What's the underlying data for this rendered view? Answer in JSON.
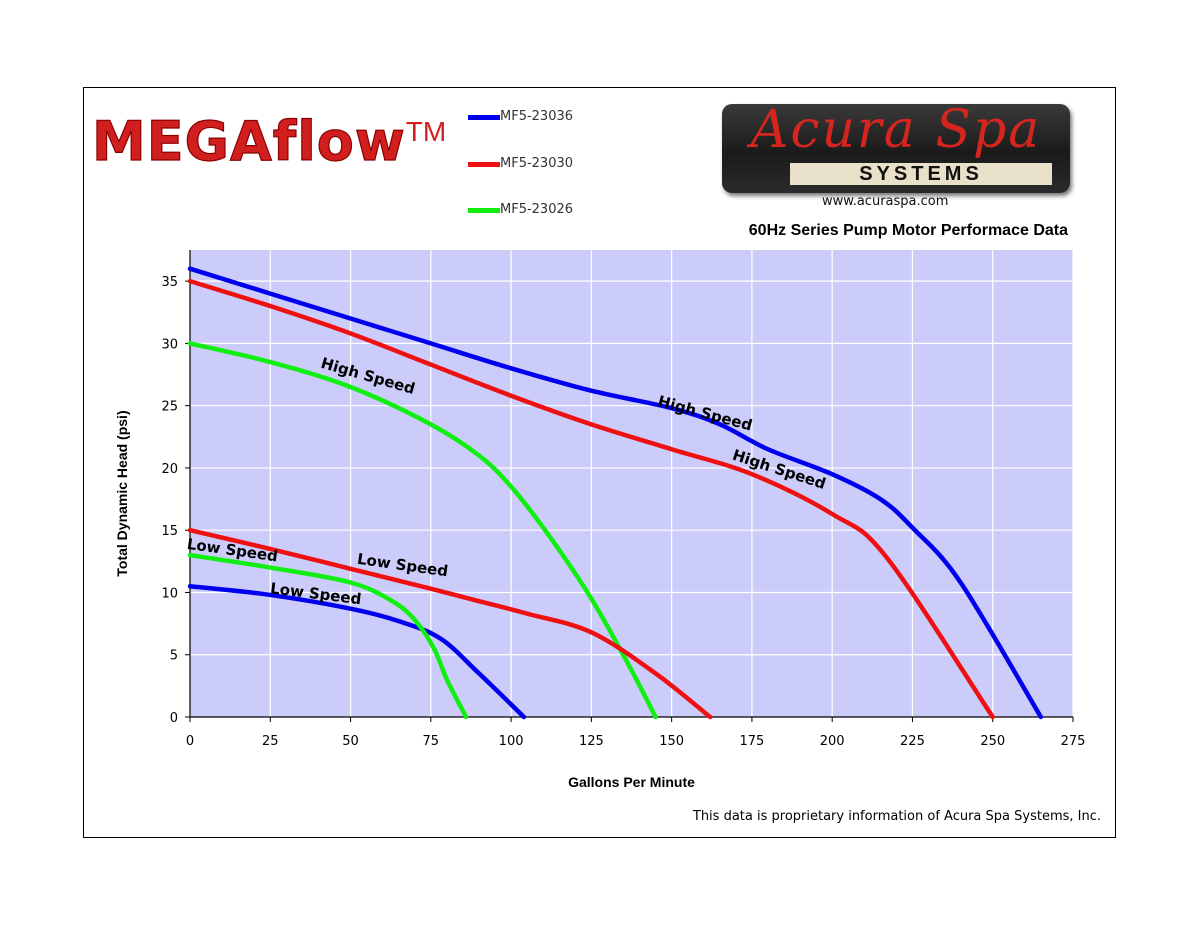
{
  "brand": {
    "logo_text": "MEGAflow",
    "logo_mark": "TM"
  },
  "company": {
    "logo_name": "Acura Spa",
    "logo_sub": "SYSTEMS",
    "website": "www.acuraspa.com"
  },
  "colors": {
    "MF5-23036": "#0000ee",
    "MF5-23030": "#ee1111",
    "MF5-23026": "#11ee11",
    "plot_bg": "#ccccfa"
  },
  "footnote": "This data is proprietary information of Acura Spa Systems, Inc.",
  "chart_data": {
    "type": "line",
    "title": "60Hz Series Pump Motor Performace Data",
    "xlabel": "Gallons Per Minute",
    "ylabel": "Total Dynamic Head (psi)",
    "xlim": [
      0,
      275
    ],
    "ylim": [
      0,
      37.5
    ],
    "xticks": [
      0,
      25,
      50,
      75,
      100,
      125,
      150,
      175,
      200,
      225,
      250,
      275
    ],
    "yticks": [
      0,
      5,
      10,
      15,
      20,
      25,
      30,
      35
    ],
    "grid": true,
    "legend_position": "top",
    "legend": [
      "MF5-23036",
      "MF5-23030",
      "MF5-23026"
    ],
    "series": [
      {
        "name": "MF5-23036",
        "color": "#0000ee",
        "label": "High Speed",
        "x": [
          0,
          25,
          50,
          75,
          100,
          125,
          150,
          165,
          180,
          200,
          215,
          225,
          240,
          265
        ],
        "y": [
          36,
          34,
          32,
          30,
          28,
          26.2,
          24.8,
          23.5,
          21.5,
          19.5,
          17.5,
          15.2,
          10.8,
          0
        ]
      },
      {
        "name": "MF5-23030",
        "color": "#ee1111",
        "label": "High Speed",
        "x": [
          0,
          25,
          50,
          75,
          100,
          125,
          150,
          175,
          200,
          217,
          250
        ],
        "y": [
          35,
          33,
          30.8,
          28.3,
          25.8,
          23.5,
          21.5,
          19.5,
          16.3,
          12.8,
          0
        ]
      },
      {
        "name": "MF5-23026",
        "color": "#11ee11",
        "label": "High Speed",
        "x": [
          0,
          25,
          50,
          75,
          90,
          100,
          112,
          125,
          137,
          145
        ],
        "y": [
          30,
          28.5,
          26.5,
          23.5,
          21,
          18.5,
          14.5,
          9.5,
          4,
          0
        ]
      },
      {
        "name": "MF5-23036",
        "color": "#0000ee",
        "label": "Low Speed",
        "x": [
          0,
          25,
          50,
          65,
          78,
          90,
          104
        ],
        "y": [
          10.5,
          9.8,
          8.7,
          7.7,
          6.3,
          3.5,
          0
        ]
      },
      {
        "name": "MF5-23030",
        "color": "#ee1111",
        "label": "Low Speed",
        "x": [
          0,
          25,
          50,
          75,
          90,
          105,
          125,
          145,
          162
        ],
        "y": [
          15,
          13.5,
          11.9,
          10.3,
          9.3,
          8.3,
          6.8,
          3.5,
          0
        ]
      },
      {
        "name": "MF5-23026",
        "color": "#11ee11",
        "label": "Low Speed",
        "x": [
          0,
          25,
          50,
          63,
          70,
          76,
          80,
          86
        ],
        "y": [
          13,
          12,
          10.8,
          9.3,
          7.8,
          5.5,
          3,
          0
        ]
      }
    ],
    "annotations": [
      "High Speed",
      "High Speed",
      "High Speed",
      "Low Speed",
      "Low Speed",
      "Low Speed"
    ]
  }
}
